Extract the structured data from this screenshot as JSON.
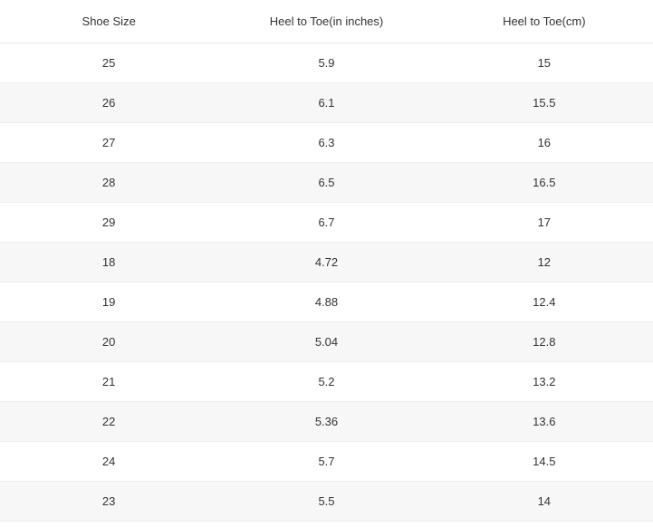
{
  "table": {
    "columns": [
      "Shoe Size",
      "Heel to Toe(in inches)",
      "Heel to Toe(cm)"
    ],
    "column_alignment": [
      "center",
      "center",
      "center"
    ],
    "header_bg": "#ffffff",
    "header_text_color": "#333333",
    "header_fontsize": 13,
    "body_fontsize": 13,
    "body_text_color": "#333333",
    "row_bg_even": "#ffffff",
    "row_bg_odd": "#f7f7f7",
    "border_color": "#eeeeee",
    "rows": [
      [
        "25",
        "5.9",
        "15"
      ],
      [
        "26",
        "6.1",
        "15.5"
      ],
      [
        "27",
        "6.3",
        "16"
      ],
      [
        "28",
        "6.5",
        "16.5"
      ],
      [
        "29",
        "6.7",
        "17"
      ],
      [
        "18",
        "4.72",
        "12"
      ],
      [
        "19",
        "4.88",
        "12.4"
      ],
      [
        "20",
        "5.04",
        "12.8"
      ],
      [
        "21",
        "5.2",
        "13.2"
      ],
      [
        "22",
        "5.36",
        "13.6"
      ],
      [
        "24",
        "5.7",
        "14.5"
      ],
      [
        "23",
        "5.5",
        "14"
      ]
    ]
  }
}
